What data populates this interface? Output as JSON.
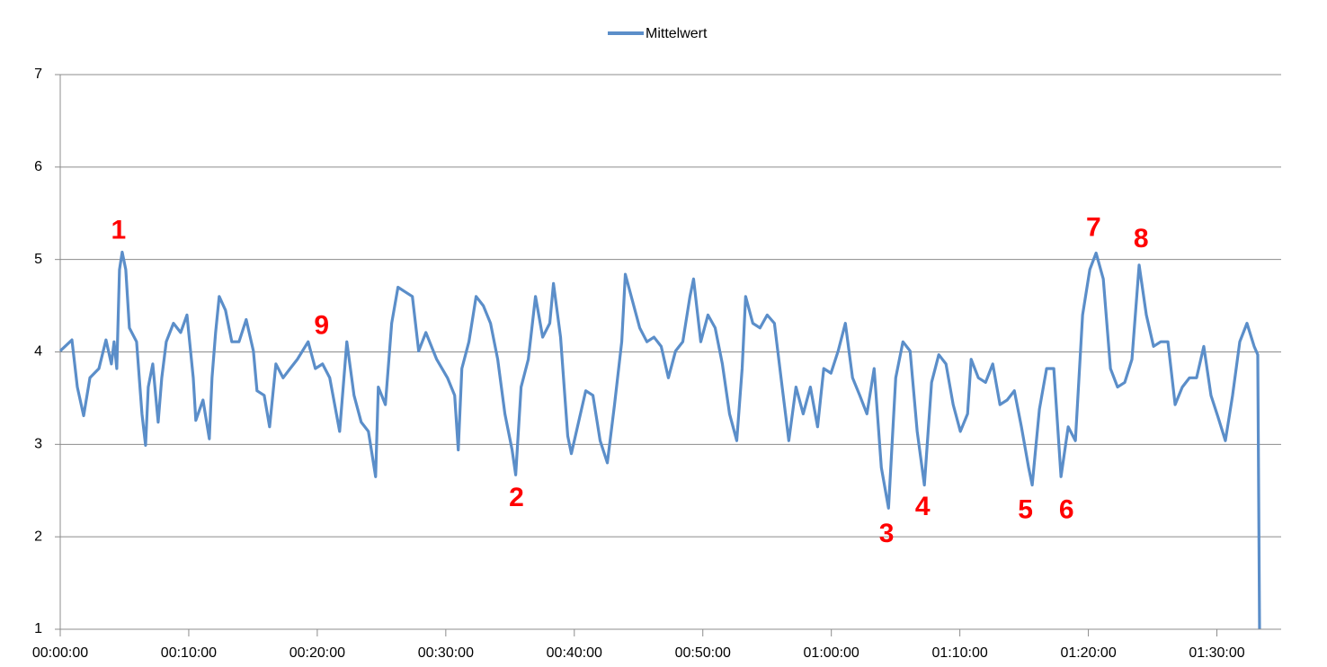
{
  "chart_data": {
    "type": "line",
    "legend_position": "top",
    "grid": true,
    "x": [
      0,
      0.91,
      1.33,
      1.82,
      2.31,
      3.01,
      3.56,
      3.98,
      4.19,
      4.4,
      4.61,
      4.82,
      5.1,
      5.38,
      5.94,
      6.36,
      6.64,
      6.85,
      7.2,
      7.62,
      7.9,
      8.25,
      8.81,
      9.37,
      9.86,
      10.35,
      10.55,
      11.11,
      11.6,
      11.81,
      12.09,
      12.37,
      12.86,
      13.35,
      13.91,
      14.47,
      15.03,
      15.31,
      15.87,
      16.29,
      16.78,
      17.34,
      17.89,
      18.45,
      19.29,
      19.85,
      20.41,
      20.97,
      21.74,
      22.3,
      22.86,
      23.42,
      23.98,
      24.54,
      24.75,
      25.3,
      25.79,
      26.28,
      26.84,
      27.4,
      27.89,
      28.45,
      29.29,
      30.13,
      30.69,
      30.97,
      31.25,
      31.8,
      32.36,
      32.92,
      33.48,
      34.04,
      34.6,
      35.16,
      35.44,
      35.86,
      36.42,
      36.98,
      37.54,
      38.09,
      38.38,
      38.93,
      39.49,
      39.77,
      40.33,
      40.89,
      41.45,
      42.01,
      42.57,
      43.13,
      43.69,
      43.97,
      44.53,
      45.09,
      45.65,
      46.2,
      46.76,
      47.32,
      47.88,
      48.44,
      49.0,
      49.28,
      49.84,
      50.4,
      50.96,
      51.52,
      52.08,
      52.64,
      53.06,
      53.33,
      53.89,
      54.45,
      55.01,
      55.57,
      56.13,
      56.69,
      57.25,
      57.81,
      58.37,
      58.93,
      59.41,
      59.97,
      60.53,
      61.09,
      61.65,
      62.21,
      62.77,
      63.33,
      63.89,
      64.45,
      65.01,
      65.57,
      66.13,
      66.68,
      67.24,
      67.8,
      68.36,
      68.92,
      69.48,
      70.04,
      70.6,
      70.88,
      71.44,
      72.0,
      72.56,
      73.12,
      73.68,
      74.24,
      74.79,
      75.35,
      75.63,
      76.19,
      76.75,
      77.31,
      77.59,
      77.87,
      78.43,
      78.99,
      79.55,
      80.11,
      80.6,
      81.16,
      81.72,
      82.27,
      82.83,
      83.39,
      83.95,
      84.51,
      85.07,
      85.63,
      86.19,
      86.75,
      87.31,
      87.87,
      88.42,
      88.98,
      89.54,
      90.1,
      90.66,
      91.22,
      91.78,
      92.34,
      92.9,
      93.18,
      93.32
    ],
    "series": [
      {
        "name": "Mittelwert",
        "color": "#5b8ec9",
        "values": [
          4.01,
          4.13,
          3.62,
          3.31,
          3.72,
          3.82,
          4.13,
          3.87,
          4.11,
          3.82,
          4.89,
          5.08,
          4.89,
          4.26,
          4.11,
          3.33,
          2.99,
          3.62,
          3.87,
          3.24,
          3.72,
          4.11,
          4.31,
          4.21,
          4.4,
          3.72,
          3.26,
          3.48,
          3.06,
          3.72,
          4.21,
          4.6,
          4.45,
          4.11,
          4.11,
          4.35,
          4.01,
          3.58,
          3.53,
          3.19,
          3.87,
          3.72,
          3.82,
          3.92,
          4.11,
          3.82,
          3.87,
          3.72,
          3.14,
          4.11,
          3.53,
          3.24,
          3.14,
          2.65,
          3.62,
          3.43,
          4.31,
          4.7,
          4.65,
          4.6,
          4.01,
          4.21,
          3.92,
          3.72,
          3.53,
          2.94,
          3.82,
          4.11,
          4.6,
          4.5,
          4.31,
          3.92,
          3.33,
          2.94,
          2.67,
          3.62,
          3.92,
          4.6,
          4.16,
          4.31,
          4.74,
          4.16,
          3.09,
          2.9,
          3.24,
          3.58,
          3.53,
          3.04,
          2.8,
          3.43,
          4.11,
          4.84,
          4.55,
          4.26,
          4.11,
          4.16,
          4.06,
          3.72,
          4.01,
          4.11,
          4.6,
          4.79,
          4.11,
          4.4,
          4.26,
          3.87,
          3.33,
          3.04,
          3.82,
          4.6,
          4.31,
          4.26,
          4.4,
          4.31,
          3.67,
          3.04,
          3.62,
          3.33,
          3.62,
          3.19,
          3.82,
          3.77,
          4.01,
          4.31,
          3.72,
          3.53,
          3.33,
          3.82,
          2.75,
          2.31,
          3.72,
          4.11,
          4.01,
          3.14,
          2.56,
          3.67,
          3.97,
          3.87,
          3.43,
          3.14,
          3.33,
          3.92,
          3.72,
          3.67,
          3.87,
          3.43,
          3.48,
          3.58,
          3.19,
          2.75,
          2.56,
          3.38,
          3.82,
          3.82,
          3.24,
          2.65,
          3.19,
          3.04,
          4.4,
          4.89,
          5.07,
          4.79,
          3.82,
          3.62,
          3.67,
          3.92,
          4.94,
          4.4,
          4.06,
          4.11,
          4.11,
          3.43,
          3.62,
          3.72,
          3.72,
          4.06,
          3.53,
          3.29,
          3.04,
          3.53,
          4.11,
          4.31,
          4.06,
          3.97,
          1.0
        ]
      }
    ],
    "xlim": [
      0,
      95
    ],
    "xticks": [
      {
        "value": 0,
        "label": "00:00:00"
      },
      {
        "value": 10,
        "label": "00:10:00"
      },
      {
        "value": 20,
        "label": "00:20:00"
      },
      {
        "value": 30,
        "label": "00:30:00"
      },
      {
        "value": 40,
        "label": "00:40:00"
      },
      {
        "value": 50,
        "label": "00:50:00"
      },
      {
        "value": 60,
        "label": "01:00:00"
      },
      {
        "value": 70,
        "label": "01:10:00"
      },
      {
        "value": 80,
        "label": "01:20:00"
      },
      {
        "value": 90,
        "label": "01:30:00"
      }
    ],
    "ylim": [
      1,
      7
    ],
    "yticks": [
      1,
      2,
      3,
      4,
      5,
      6,
      7
    ],
    "annotations": [
      {
        "text": "1",
        "x": 4.54,
        "y": 5.3,
        "color": "#ff0000"
      },
      {
        "text": "9",
        "x": 20.34,
        "y": 4.27,
        "color": "#ff0000"
      },
      {
        "text": "2",
        "x": 35.5,
        "y": 2.41,
        "color": "#ff0000"
      },
      {
        "text": "3",
        "x": 64.3,
        "y": 2.02,
        "color": "#ff0000"
      },
      {
        "text": "4",
        "x": 67.1,
        "y": 2.31,
        "color": "#ff0000"
      },
      {
        "text": "5",
        "x": 75.1,
        "y": 2.28,
        "color": "#ff0000"
      },
      {
        "text": "6",
        "x": 78.3,
        "y": 2.28,
        "color": "#ff0000"
      },
      {
        "text": "7",
        "x": 80.4,
        "y": 5.33,
        "color": "#ff0000"
      },
      {
        "text": "8",
        "x": 84.1,
        "y": 5.21,
        "color": "#ff0000"
      }
    ]
  }
}
